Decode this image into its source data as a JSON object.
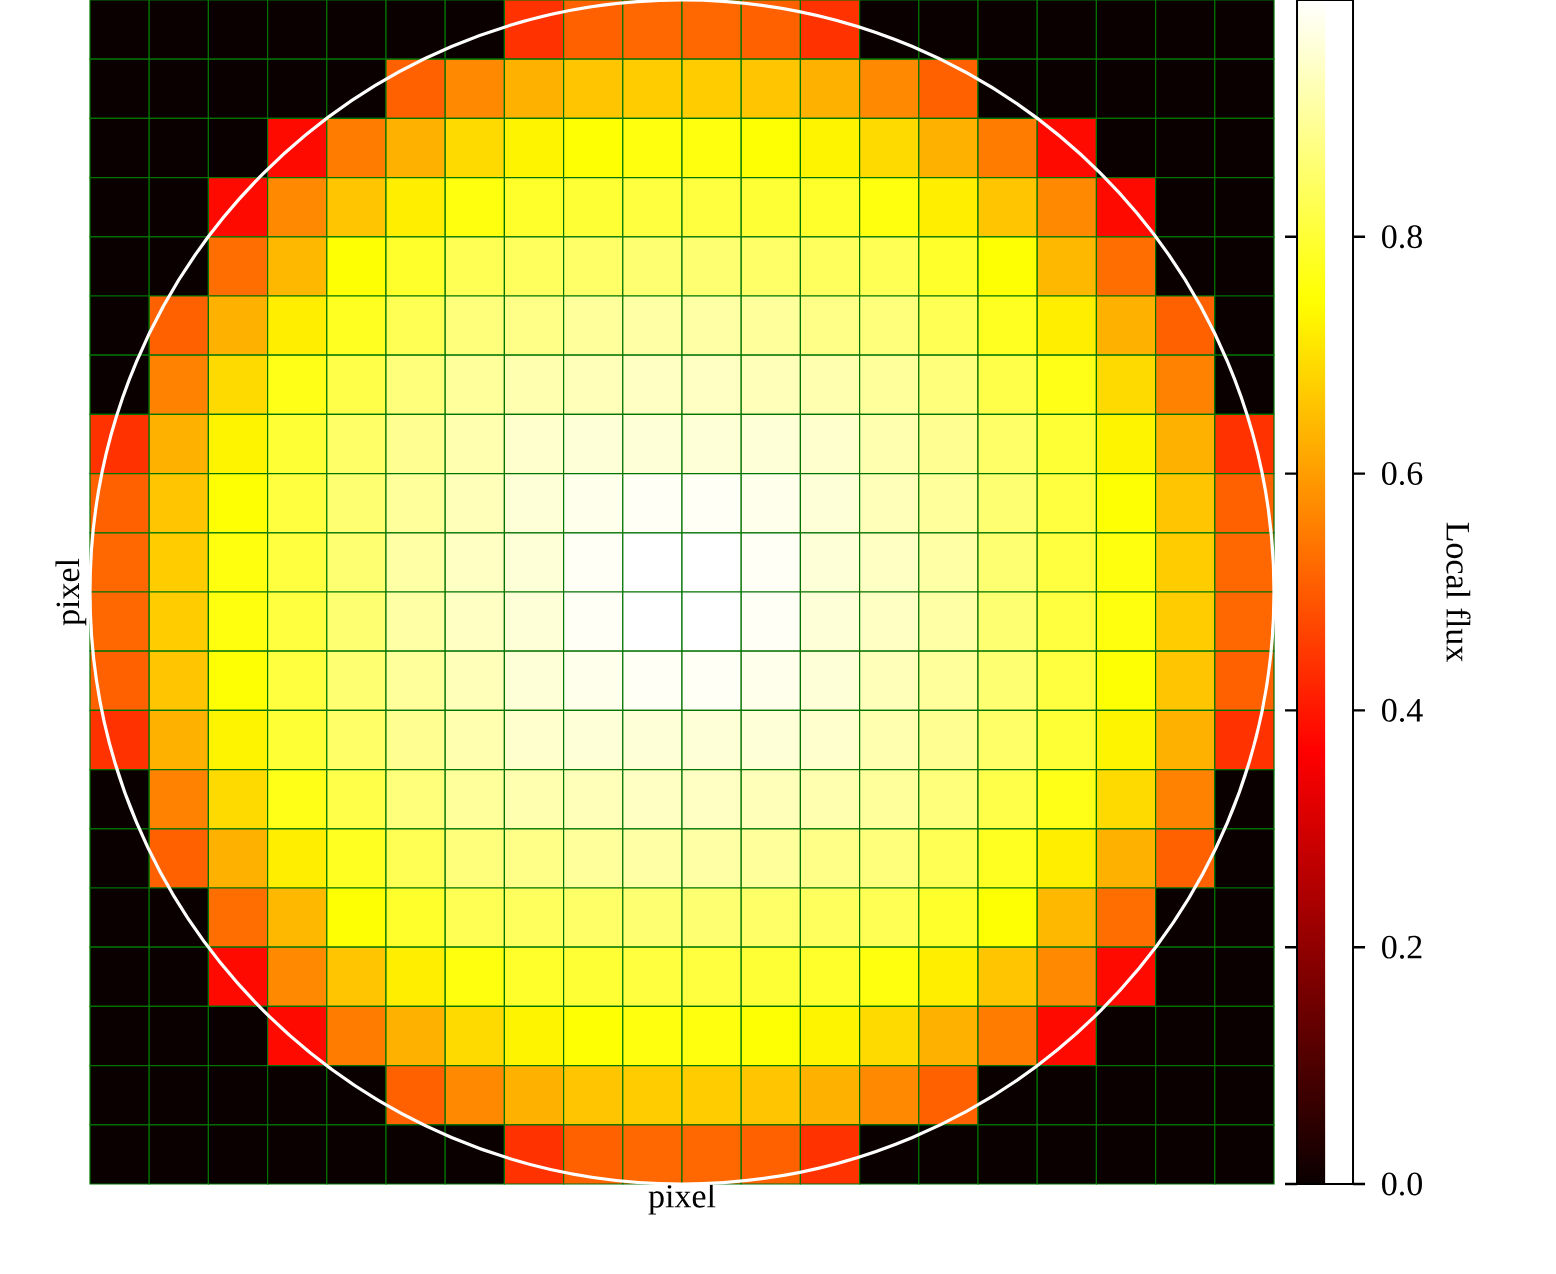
{
  "chart_data": {
    "type": "heatmap",
    "xlabel": "pixel",
    "ylabel": "pixel",
    "clabel": "Local flux",
    "categories": [
      null,
      null,
      null,
      null,
      null,
      null,
      null,
      null,
      null,
      null,
      null,
      null,
      null,
      null,
      null,
      null,
      null,
      null,
      null,
      null
    ],
    "y_categories": [
      null,
      null,
      null,
      null,
      null,
      null,
      null,
      null,
      null,
      null,
      null,
      null,
      null,
      null,
      null,
      null,
      null,
      null,
      null,
      null
    ],
    "clim": [
      0,
      1
    ],
    "cticks": [
      {
        "value": 0,
        "label": "0.0"
      },
      {
        "value": 0.2,
        "label": "0.2"
      },
      {
        "value": 0.4,
        "label": "0.4"
      },
      {
        "value": 0.6,
        "label": "0.6"
      },
      {
        "value": 0.8,
        "label": "0.8"
      }
    ],
    "cells": [
      [
        0,
        0,
        0,
        0,
        0,
        0,
        0,
        0.44,
        0.51,
        0.52,
        0.52,
        0.51,
        0.44,
        0,
        0,
        0,
        0,
        0,
        0,
        0
      ],
      [
        0,
        0,
        0,
        0,
        0,
        0.51,
        0.57,
        0.63,
        0.66,
        0.67,
        0.67,
        0.66,
        0.63,
        0.57,
        0.51,
        0,
        0,
        0,
        0,
        0
      ],
      [
        0,
        0,
        0,
        0.38,
        0.55,
        0.63,
        0.69,
        0.73,
        0.75,
        0.76,
        0.76,
        0.75,
        0.73,
        0.69,
        0.63,
        0.55,
        0.38,
        0,
        0,
        0
      ],
      [
        0,
        0,
        0.38,
        0.57,
        0.66,
        0.72,
        0.76,
        0.79,
        0.8,
        0.81,
        0.81,
        0.8,
        0.79,
        0.76,
        0.72,
        0.66,
        0.57,
        0.38,
        0,
        0
      ],
      [
        0,
        0,
        0.53,
        0.64,
        0.75,
        0.79,
        0.83,
        0.84,
        0.85,
        0.86,
        0.86,
        0.85,
        0.84,
        0.83,
        0.79,
        0.75,
        0.64,
        0.53,
        0,
        0
      ],
      [
        0,
        0.51,
        0.63,
        0.72,
        0.78,
        0.83,
        0.87,
        0.88,
        0.9,
        0.91,
        0.91,
        0.9,
        0.88,
        0.87,
        0.83,
        0.78,
        0.72,
        0.63,
        0.51,
        0
      ],
      [
        0,
        0.56,
        0.69,
        0.77,
        0.82,
        0.87,
        0.9,
        0.92,
        0.93,
        0.94,
        0.94,
        0.93,
        0.92,
        0.9,
        0.87,
        0.82,
        0.77,
        0.69,
        0.56,
        0
      ],
      [
        0.44,
        0.63,
        0.73,
        0.8,
        0.85,
        0.89,
        0.92,
        0.95,
        0.96,
        0.96,
        0.96,
        0.96,
        0.95,
        0.92,
        0.89,
        0.85,
        0.8,
        0.73,
        0.63,
        0.44
      ],
      [
        0.51,
        0.66,
        0.75,
        0.81,
        0.86,
        0.9,
        0.93,
        0.96,
        0.98,
        0.99,
        0.99,
        0.98,
        0.96,
        0.93,
        0.9,
        0.86,
        0.81,
        0.75,
        0.66,
        0.51
      ],
      [
        0.52,
        0.67,
        0.76,
        0.81,
        0.86,
        0.91,
        0.94,
        0.96,
        0.99,
        1.0,
        1.0,
        0.99,
        0.96,
        0.94,
        0.91,
        0.86,
        0.81,
        0.76,
        0.67,
        0.52
      ],
      [
        0.52,
        0.67,
        0.76,
        0.81,
        0.86,
        0.91,
        0.94,
        0.96,
        0.99,
        1.0,
        1.0,
        0.99,
        0.96,
        0.94,
        0.91,
        0.86,
        0.81,
        0.76,
        0.67,
        0.52
      ],
      [
        0.51,
        0.66,
        0.75,
        0.81,
        0.86,
        0.9,
        0.93,
        0.96,
        0.98,
        0.99,
        0.99,
        0.98,
        0.96,
        0.93,
        0.9,
        0.86,
        0.81,
        0.75,
        0.66,
        0.51
      ],
      [
        0.44,
        0.63,
        0.73,
        0.8,
        0.85,
        0.89,
        0.92,
        0.95,
        0.96,
        0.96,
        0.96,
        0.96,
        0.95,
        0.92,
        0.89,
        0.85,
        0.8,
        0.73,
        0.63,
        0.44
      ],
      [
        0,
        0.56,
        0.69,
        0.77,
        0.82,
        0.87,
        0.9,
        0.92,
        0.93,
        0.94,
        0.94,
        0.93,
        0.92,
        0.9,
        0.87,
        0.82,
        0.77,
        0.69,
        0.56,
        0
      ],
      [
        0,
        0.51,
        0.63,
        0.72,
        0.78,
        0.83,
        0.87,
        0.88,
        0.9,
        0.91,
        0.91,
        0.9,
        0.88,
        0.87,
        0.83,
        0.78,
        0.72,
        0.63,
        0.51,
        0
      ],
      [
        0,
        0,
        0.53,
        0.64,
        0.75,
        0.79,
        0.83,
        0.84,
        0.85,
        0.86,
        0.86,
        0.85,
        0.84,
        0.83,
        0.79,
        0.75,
        0.64,
        0.53,
        0,
        0
      ],
      [
        0,
        0,
        0.38,
        0.57,
        0.66,
        0.72,
        0.76,
        0.79,
        0.8,
        0.81,
        0.81,
        0.8,
        0.79,
        0.76,
        0.72,
        0.66,
        0.57,
        0.38,
        0,
        0
      ],
      [
        0,
        0,
        0,
        0.38,
        0.55,
        0.63,
        0.69,
        0.73,
        0.75,
        0.76,
        0.76,
        0.75,
        0.73,
        0.69,
        0.63,
        0.55,
        0.38,
        0,
        0,
        0
      ],
      [
        0,
        0,
        0,
        0,
        0,
        0.51,
        0.57,
        0.63,
        0.66,
        0.67,
        0.67,
        0.66,
        0.63,
        0.57,
        0.51,
        0,
        0,
        0,
        0,
        0
      ],
      [
        0,
        0,
        0,
        0,
        0,
        0,
        0,
        0.44,
        0.51,
        0.52,
        0.52,
        0.51,
        0.44,
        0,
        0,
        0,
        0,
        0,
        0,
        0
      ]
    ]
  }
}
